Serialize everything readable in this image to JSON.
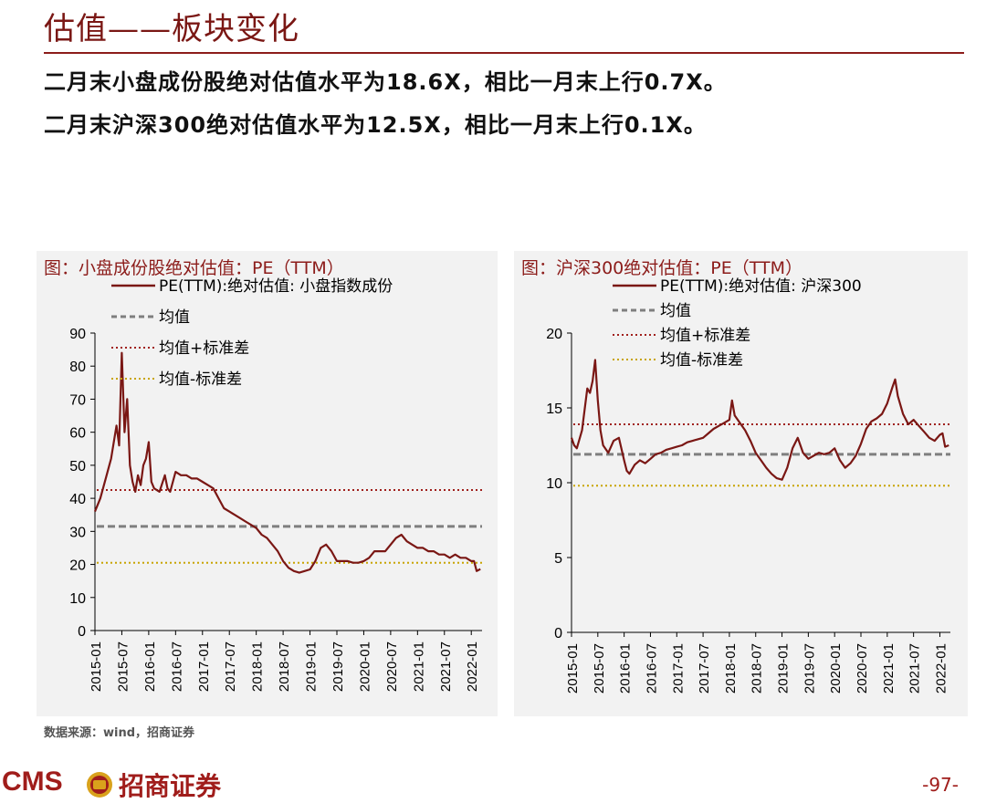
{
  "header": {
    "title": "估值——板块变化",
    "line1": "二月末小盘成份股绝对估值水平为18.6X，相比一月末上行0.7X。",
    "line2": "二月末沪深300绝对估值水平为12.5X，相比一月末上行0.1X。"
  },
  "footer": {
    "source": "数据来源：wind，招商证券",
    "logo_text": "CMS",
    "logo_cn": "招商证券",
    "page": "-97-"
  },
  "colors": {
    "brand": "#8c1c1a",
    "line": "#7a1714",
    "mean": "#7f7f7f",
    "upper": "#a0201c",
    "lower": "#c8a400"
  },
  "chart_data": [
    {
      "type": "line",
      "title": "图：小盘成份股绝对估值：PE（TTM）",
      "x_ticks": [
        "2015-01",
        "2015-07",
        "2016-01",
        "2016-07",
        "2017-01",
        "2017-07",
        "2018-01",
        "2018-07",
        "2019-01",
        "2019-07",
        "2020-01",
        "2020-07",
        "2021-01",
        "2021-07",
        "2022-01"
      ],
      "ylim": [
        0,
        90
      ],
      "y_ticks": [
        "0",
        "10",
        "20",
        "30",
        "40",
        "50",
        "60",
        "70",
        "80",
        "90"
      ],
      "legend": [
        "PE(TTM):绝对估值: 小盘指数成份",
        "均值",
        "均值+标准差",
        "均值-标准差"
      ],
      "mean": 31.5,
      "upper": 42.5,
      "lower": 20.5,
      "series": [
        {
          "name": "PE(TTM):绝对估值: 小盘指数成份",
          "points": [
            [
              2015.0,
              36
            ],
            [
              2015.1,
              40
            ],
            [
              2015.2,
              46
            ],
            [
              2015.3,
              52
            ],
            [
              2015.4,
              62
            ],
            [
              2015.45,
              56
            ],
            [
              2015.5,
              84
            ],
            [
              2015.55,
              60
            ],
            [
              2015.6,
              70
            ],
            [
              2015.65,
              50
            ],
            [
              2015.7,
              45
            ],
            [
              2015.75,
              42
            ],
            [
              2015.8,
              47
            ],
            [
              2015.85,
              44
            ],
            [
              2015.9,
              50
            ],
            [
              2015.95,
              52
            ],
            [
              2016.0,
              57
            ],
            [
              2016.05,
              45
            ],
            [
              2016.1,
              43
            ],
            [
              2016.2,
              42
            ],
            [
              2016.3,
              47
            ],
            [
              2016.35,
              43
            ],
            [
              2016.4,
              42
            ],
            [
              2016.5,
              48
            ],
            [
              2016.6,
              47
            ],
            [
              2016.7,
              47
            ],
            [
              2016.8,
              46
            ],
            [
              2016.9,
              46
            ],
            [
              2017.0,
              45
            ],
            [
              2017.1,
              44
            ],
            [
              2017.2,
              43
            ],
            [
              2017.3,
              40
            ],
            [
              2017.4,
              37
            ],
            [
              2017.5,
              36
            ],
            [
              2017.6,
              35
            ],
            [
              2017.7,
              34
            ],
            [
              2017.8,
              33
            ],
            [
              2017.9,
              32
            ],
            [
              2018.0,
              31
            ],
            [
              2018.1,
              29
            ],
            [
              2018.2,
              28
            ],
            [
              2018.3,
              26
            ],
            [
              2018.4,
              24
            ],
            [
              2018.5,
              21
            ],
            [
              2018.6,
              19
            ],
            [
              2018.7,
              18
            ],
            [
              2018.8,
              17.5
            ],
            [
              2018.9,
              18
            ],
            [
              2019.0,
              18.5
            ],
            [
              2019.1,
              21
            ],
            [
              2019.2,
              25
            ],
            [
              2019.3,
              26
            ],
            [
              2019.4,
              24
            ],
            [
              2019.5,
              21
            ],
            [
              2019.6,
              21
            ],
            [
              2019.7,
              21
            ],
            [
              2019.8,
              20.5
            ],
            [
              2019.9,
              20.5
            ],
            [
              2020.0,
              21
            ],
            [
              2020.1,
              22
            ],
            [
              2020.2,
              24
            ],
            [
              2020.3,
              24
            ],
            [
              2020.4,
              24
            ],
            [
              2020.5,
              26
            ],
            [
              2020.6,
              28
            ],
            [
              2020.7,
              29
            ],
            [
              2020.8,
              27
            ],
            [
              2020.9,
              26
            ],
            [
              2021.0,
              25
            ],
            [
              2021.1,
              25
            ],
            [
              2021.2,
              24
            ],
            [
              2021.3,
              24
            ],
            [
              2021.4,
              23
            ],
            [
              2021.5,
              23
            ],
            [
              2021.6,
              22
            ],
            [
              2021.7,
              23
            ],
            [
              2021.8,
              22
            ],
            [
              2021.9,
              22
            ],
            [
              2022.0,
              21
            ],
            [
              2022.05,
              21
            ],
            [
              2022.1,
              18
            ],
            [
              2022.17,
              18.6
            ]
          ]
        }
      ]
    },
    {
      "type": "line",
      "title": "图：沪深300绝对估值：PE（TTM）",
      "x_ticks": [
        "2015-01",
        "2015-07",
        "2016-01",
        "2016-07",
        "2017-01",
        "2017-07",
        "2018-01",
        "2018-07",
        "2019-01",
        "2019-07",
        "2020-01",
        "2020-07",
        "2021-01",
        "2021-07",
        "2022-01"
      ],
      "ylim": [
        0,
        20
      ],
      "y_ticks": [
        "0",
        "5",
        "10",
        "15",
        "20"
      ],
      "legend": [
        "PE(TTM):绝对估值: 沪深300",
        "均值",
        "均值+标准差",
        "均值-标准差"
      ],
      "mean": 11.9,
      "upper": 13.9,
      "lower": 9.8,
      "series": [
        {
          "name": "PE(TTM):绝对估值: 沪深300",
          "points": [
            [
              2015.0,
              13
            ],
            [
              2015.05,
              12.5
            ],
            [
              2015.1,
              12.3
            ],
            [
              2015.2,
              13.5
            ],
            [
              2015.3,
              16.3
            ],
            [
              2015.35,
              16
            ],
            [
              2015.4,
              16.8
            ],
            [
              2015.45,
              18.2
            ],
            [
              2015.5,
              15.5
            ],
            [
              2015.55,
              13.5
            ],
            [
              2015.6,
              12.5
            ],
            [
              2015.7,
              12.0
            ],
            [
              2015.8,
              12.8
            ],
            [
              2015.9,
              13
            ],
            [
              2016.0,
              11.5
            ],
            [
              2016.05,
              10.8
            ],
            [
              2016.1,
              10.6
            ],
            [
              2016.2,
              11.2
            ],
            [
              2016.3,
              11.5
            ],
            [
              2016.4,
              11.3
            ],
            [
              2016.5,
              11.6
            ],
            [
              2016.6,
              11.9
            ],
            [
              2016.7,
              12.0
            ],
            [
              2016.8,
              12.2
            ],
            [
              2016.9,
              12.3
            ],
            [
              2017.0,
              12.4
            ],
            [
              2017.1,
              12.5
            ],
            [
              2017.2,
              12.7
            ],
            [
              2017.3,
              12.8
            ],
            [
              2017.4,
              12.9
            ],
            [
              2017.5,
              13.0
            ],
            [
              2017.6,
              13.3
            ],
            [
              2017.7,
              13.6
            ],
            [
              2017.8,
              13.8
            ],
            [
              2017.9,
              14.0
            ],
            [
              2018.0,
              14.2
            ],
            [
              2018.05,
              15.5
            ],
            [
              2018.1,
              14.5
            ],
            [
              2018.2,
              14.0
            ],
            [
              2018.3,
              13.5
            ],
            [
              2018.4,
              12.8
            ],
            [
              2018.5,
              12.0
            ],
            [
              2018.6,
              11.5
            ],
            [
              2018.7,
              11.0
            ],
            [
              2018.8,
              10.6
            ],
            [
              2018.9,
              10.3
            ],
            [
              2019.0,
              10.2
            ],
            [
              2019.1,
              11.0
            ],
            [
              2019.2,
              12.3
            ],
            [
              2019.3,
              13.0
            ],
            [
              2019.4,
              12.0
            ],
            [
              2019.5,
              11.6
            ],
            [
              2019.6,
              11.8
            ],
            [
              2019.7,
              12.0
            ],
            [
              2019.8,
              11.9
            ],
            [
              2019.9,
              12.0
            ],
            [
              2020.0,
              12.3
            ],
            [
              2020.1,
              11.5
            ],
            [
              2020.2,
              11.0
            ],
            [
              2020.3,
              11.3
            ],
            [
              2020.4,
              11.8
            ],
            [
              2020.5,
              12.6
            ],
            [
              2020.6,
              13.6
            ],
            [
              2020.7,
              14.1
            ],
            [
              2020.8,
              14.3
            ],
            [
              2020.9,
              14.6
            ],
            [
              2021.0,
              15.3
            ],
            [
              2021.1,
              16.4
            ],
            [
              2021.15,
              16.9
            ],
            [
              2021.2,
              15.8
            ],
            [
              2021.3,
              14.6
            ],
            [
              2021.4,
              13.9
            ],
            [
              2021.5,
              14.2
            ],
            [
              2021.6,
              13.8
            ],
            [
              2021.7,
              13.4
            ],
            [
              2021.8,
              13.0
            ],
            [
              2021.9,
              12.8
            ],
            [
              2022.0,
              13.2
            ],
            [
              2022.05,
              13.3
            ],
            [
              2022.1,
              12.4
            ],
            [
              2022.17,
              12.5
            ]
          ]
        }
      ]
    }
  ]
}
